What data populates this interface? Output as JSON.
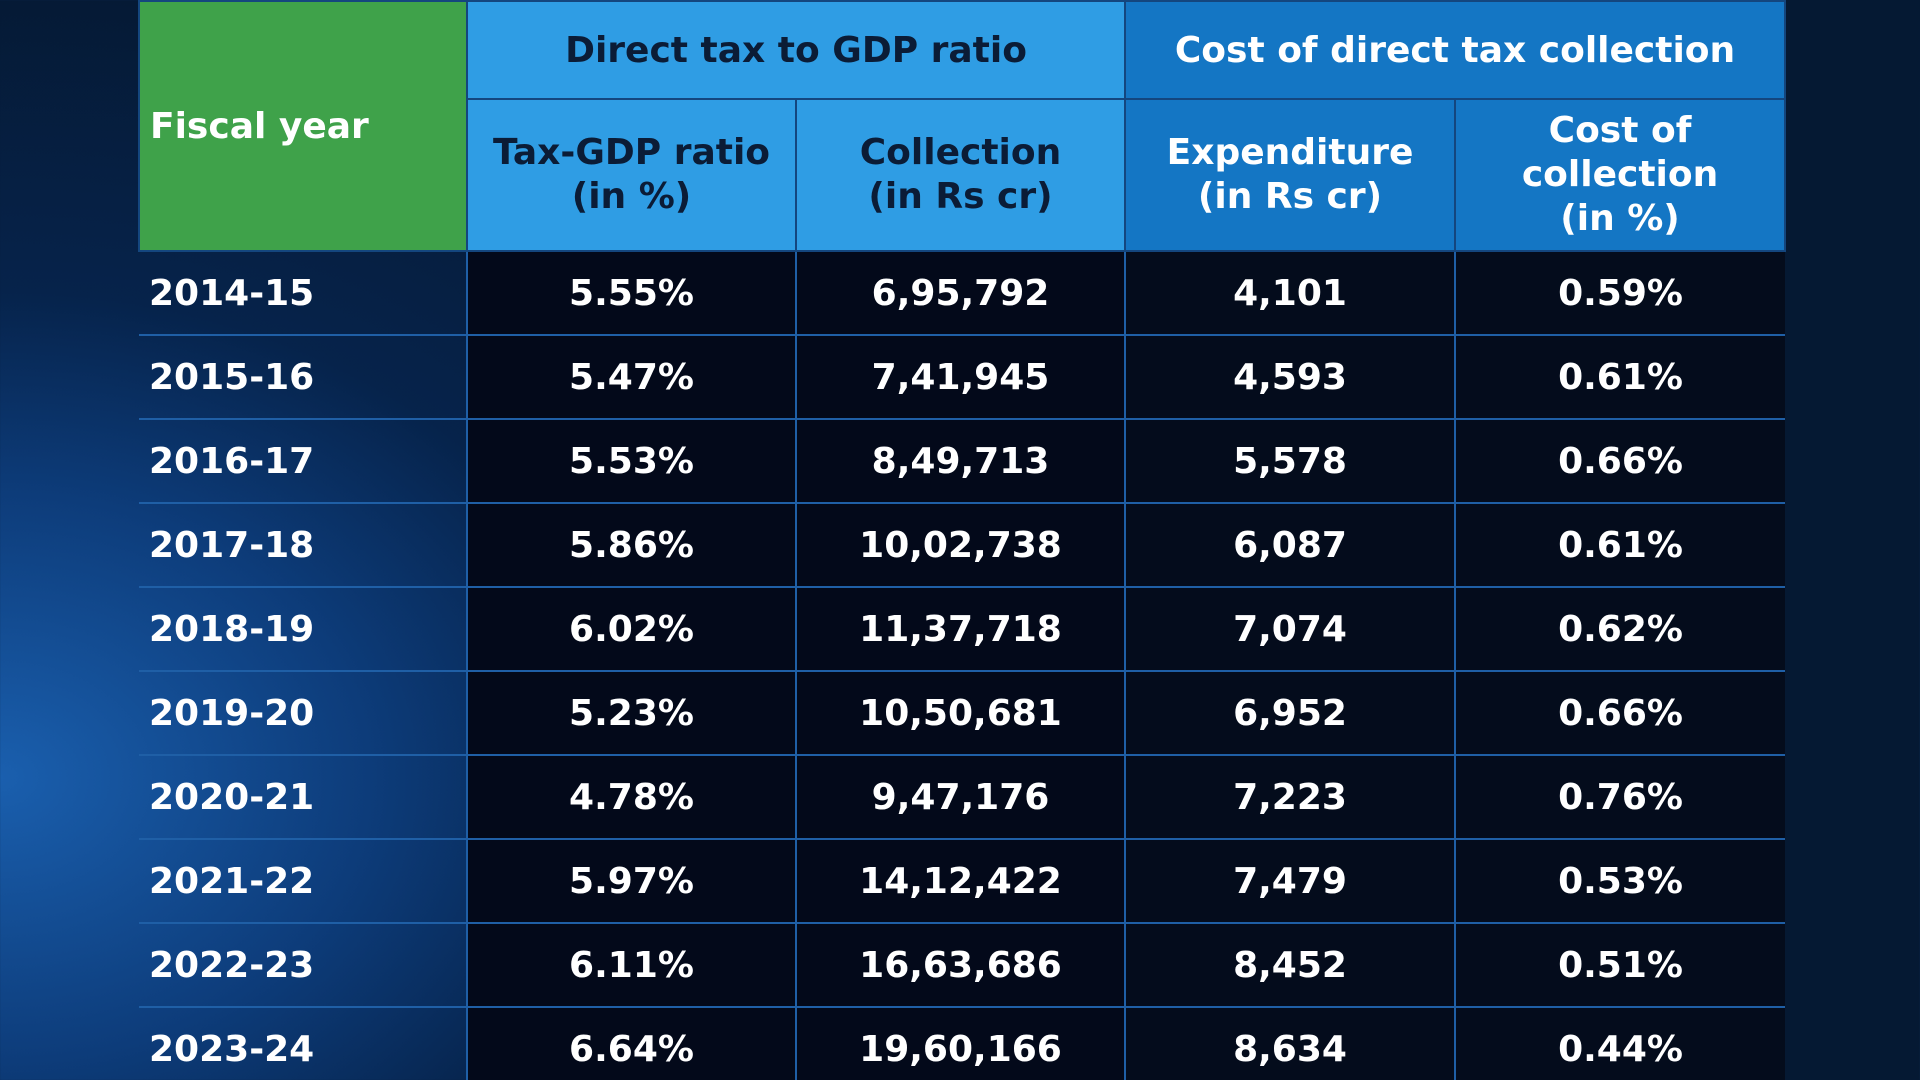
{
  "colors": {
    "fiscal_year_header": "#3fa24a",
    "gdp_header": "#2f9de4",
    "cost_header": "#1476c4",
    "row_divider": "#1f5fa6",
    "cell_bg": "#040c1c",
    "text": "#ffffff"
  },
  "chart_data": {
    "type": "table",
    "header": {
      "fiscal_year": "Fiscal year",
      "groups": [
        "Direct tax to GDP ratio",
        "Cost of direct tax collection"
      ],
      "columns": [
        "Tax-GDP ratio\n(in %)",
        "Collection\n(in Rs cr)",
        "Expenditure\n(in Rs cr)",
        "Cost of\ncollection\n(in %)"
      ]
    },
    "rows": [
      [
        "2014-15",
        "5.55%",
        "6,95,792",
        "4,101",
        "0.59%"
      ],
      [
        "2015-16",
        "5.47%",
        "7,41,945",
        "4,593",
        "0.61%"
      ],
      [
        "2016-17",
        "5.53%",
        "8,49,713",
        "5,578",
        "0.66%"
      ],
      [
        "2017-18",
        "5.86%",
        "10,02,738",
        "6,087",
        "0.61%"
      ],
      [
        "2018-19",
        "6.02%",
        "11,37,718",
        "7,074",
        "0.62%"
      ],
      [
        "2019-20",
        "5.23%",
        "10,50,681",
        "6,952",
        "0.66%"
      ],
      [
        "2020-21",
        "4.78%",
        "9,47,176",
        "7,223",
        "0.76%"
      ],
      [
        "2021-22",
        "5.97%",
        "14,12,422",
        "7,479",
        "0.53%"
      ],
      [
        "2022-23",
        "6.11%",
        "16,63,686",
        "8,452",
        "0.51%"
      ],
      [
        "2023-24",
        "6.64%",
        "19,60,166",
        "8,634",
        "0.44%"
      ]
    ]
  }
}
